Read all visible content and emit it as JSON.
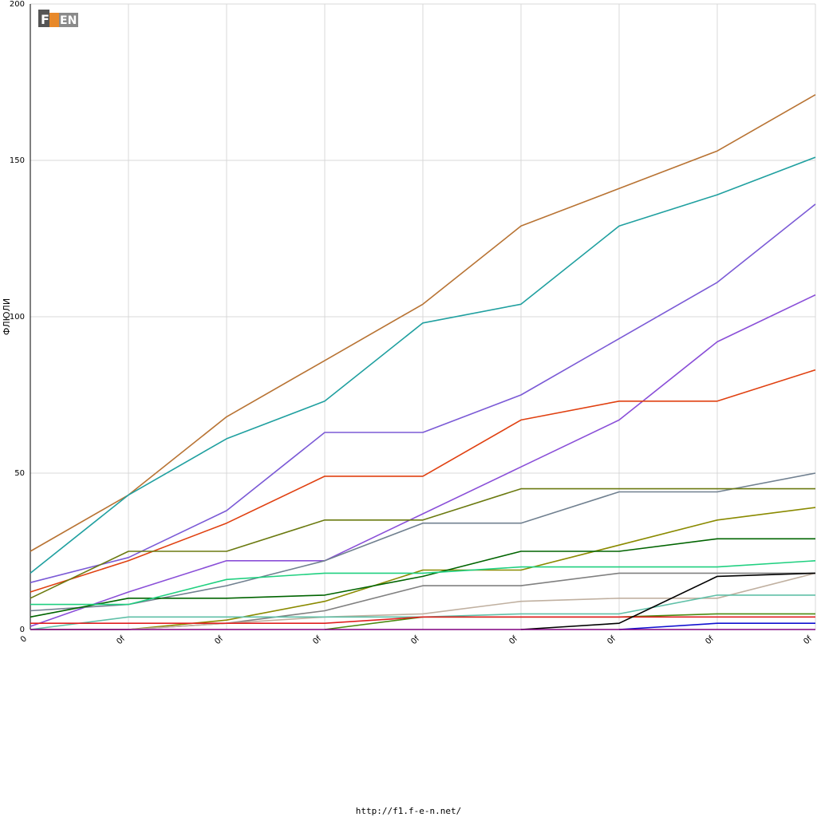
{
  "footer_url": "http://f1.f-e-n.net/",
  "chart_data": {
    "type": "line",
    "ylabel": "ФЛЮЛИ",
    "ylim": [
      0,
      200
    ],
    "y_ticks": [
      0,
      50,
      100,
      150,
      200
    ],
    "x_ticks": [
      "0",
      "0f",
      "0f",
      "0f",
      "0f",
      "0f",
      "0f",
      "0f",
      "0f"
    ],
    "grid": true,
    "series": [
      {
        "color": "#b87333",
        "values": [
          25,
          43,
          68,
          86,
          104,
          129,
          141,
          153,
          171
        ]
      },
      {
        "color": "#20a0a0",
        "values": [
          18,
          43,
          61,
          73,
          98,
          104,
          129,
          139,
          151
        ]
      },
      {
        "color": "#7b5ad6",
        "values": [
          15,
          23,
          38,
          63,
          63,
          75,
          93,
          111,
          136
        ]
      },
      {
        "color": "#8a4fd8",
        "values": [
          1,
          12,
          22,
          22,
          37,
          52,
          67,
          92,
          107
        ]
      },
      {
        "color": "#e04010",
        "values": [
          12,
          22,
          34,
          49,
          49,
          67,
          73,
          73,
          83
        ]
      },
      {
        "color": "#708090",
        "values": [
          6,
          8,
          14,
          22,
          34,
          34,
          44,
          44,
          50
        ]
      },
      {
        "color": "#6b7a10",
        "values": [
          10,
          25,
          25,
          35,
          35,
          45,
          45,
          45,
          45
        ]
      },
      {
        "color": "#8a8a00",
        "values": [
          0,
          0,
          3,
          9,
          19,
          19,
          27,
          35,
          39
        ]
      },
      {
        "color": "#006400",
        "values": [
          4,
          10,
          10,
          11,
          17,
          25,
          25,
          29,
          29
        ]
      },
      {
        "color": "#20d080",
        "values": [
          8,
          8,
          16,
          18,
          18,
          20,
          20,
          20,
          22
        ]
      },
      {
        "color": "#808080",
        "values": [
          0,
          0,
          2,
          6,
          14,
          14,
          18,
          18,
          18
        ]
      },
      {
        "color": "#c0b0a0",
        "values": [
          0,
          0,
          2,
          4,
          5,
          9,
          10,
          10,
          18
        ]
      },
      {
        "color": "#60c0a8",
        "values": [
          0,
          4,
          4,
          4,
          4,
          5,
          5,
          11,
          11
        ]
      },
      {
        "color": "#4a8a10",
        "values": [
          null,
          null,
          null,
          0,
          4,
          4,
          4,
          5,
          5
        ]
      },
      {
        "color": "#e02020",
        "values": [
          2,
          2,
          2,
          2,
          4,
          4,
          4,
          4,
          4
        ]
      },
      {
        "color": "#000000",
        "values": [
          null,
          null,
          null,
          null,
          null,
          0,
          2,
          17,
          18
        ]
      },
      {
        "color": "#1010d0",
        "values": [
          null,
          null,
          null,
          null,
          null,
          null,
          0,
          2,
          2
        ]
      },
      {
        "color": "#800080",
        "values": [
          0,
          0,
          0,
          0,
          0,
          0,
          0,
          0,
          0
        ]
      }
    ]
  }
}
